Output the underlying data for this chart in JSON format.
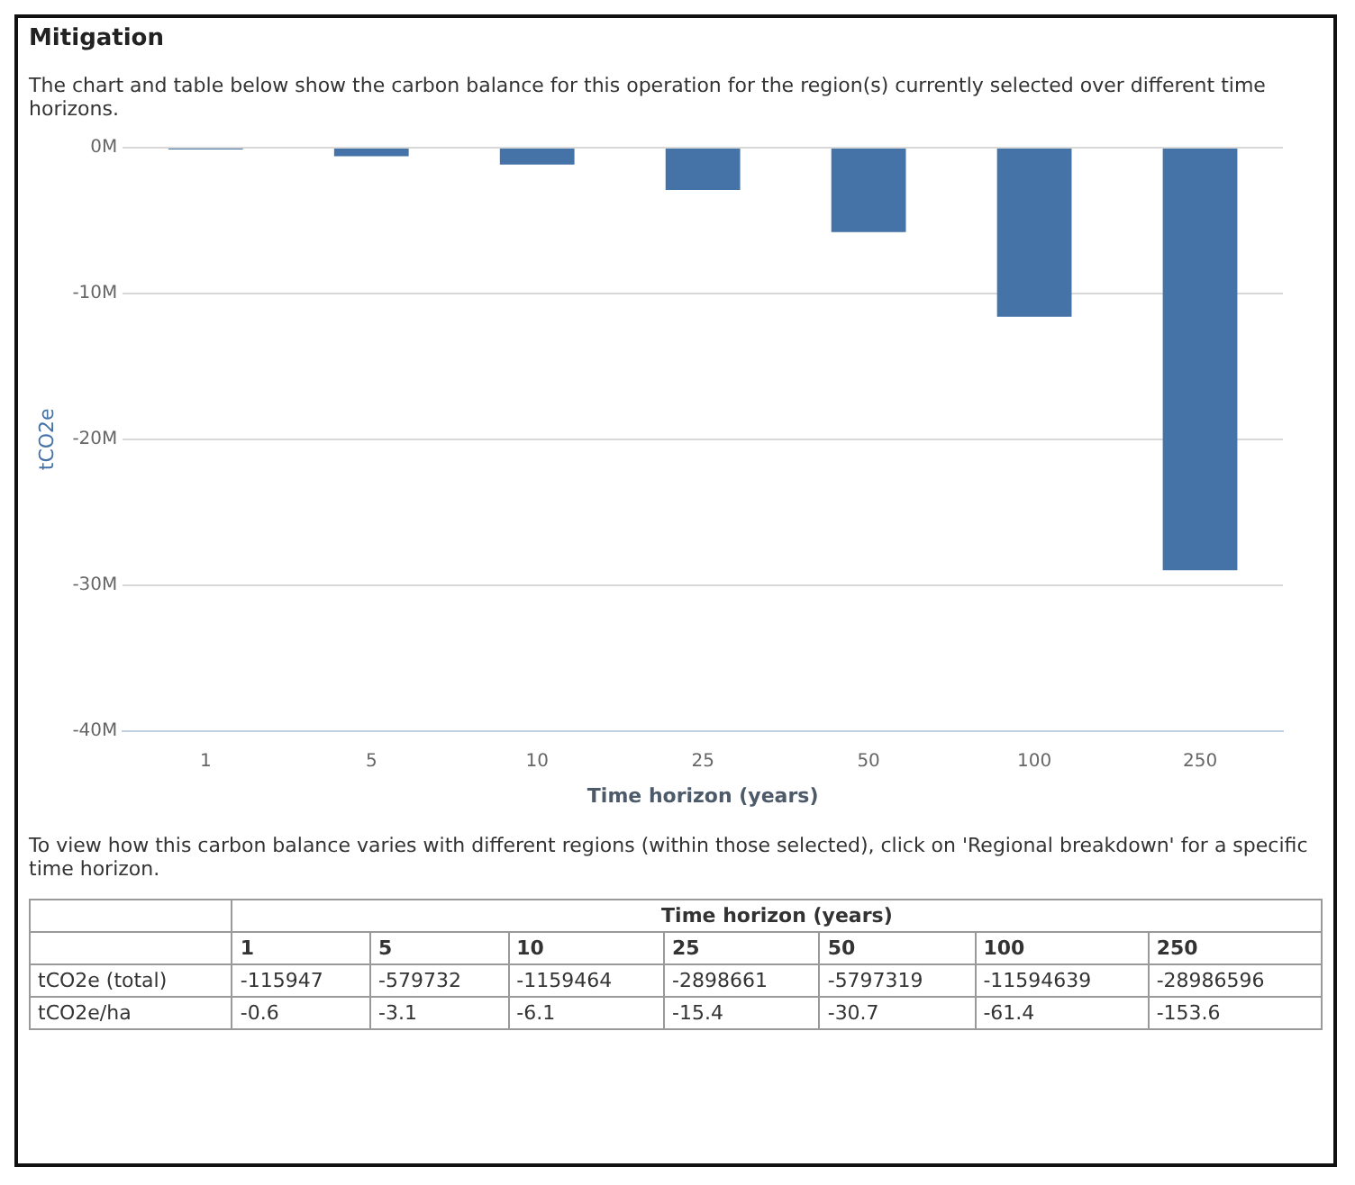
{
  "chart_data": {
    "type": "bar",
    "title": "Mitigation",
    "xlabel": "Time horizon (years)",
    "ylabel": "tCO2e",
    "categories": [
      "1",
      "5",
      "10",
      "25",
      "50",
      "100",
      "250"
    ],
    "values": [
      -115947,
      -579732,
      -1159464,
      -2898661,
      -5797319,
      -11594639,
      -28986596
    ],
    "color": "#4572a7",
    "ylim": [
      -40000000,
      0
    ],
    "yticks": [
      {
        "value": 0,
        "label": "0M"
      },
      {
        "value": -10000000,
        "label": "-10M"
      },
      {
        "value": -20000000,
        "label": "-20M"
      },
      {
        "value": -30000000,
        "label": "-30M"
      },
      {
        "value": -40000000,
        "label": "-40M"
      }
    ],
    "grid": "y",
    "legend": false,
    "data_labels": true,
    "annotations": [
      "The chart and table below show the carbon balance for this operation for the region(s) currently selected over different time horizons.",
      "To view how this carbon balance varies with different regions (within those selected), click on 'Regional breakdown' for a specific time horizon.",
      "tCO2e (total)",
      "tCO2e/ha",
      "-0.6",
      "-3.1",
      "-6.1",
      "-15.4",
      "-30.7",
      "-61.4",
      "-153.6"
    ]
  }
}
